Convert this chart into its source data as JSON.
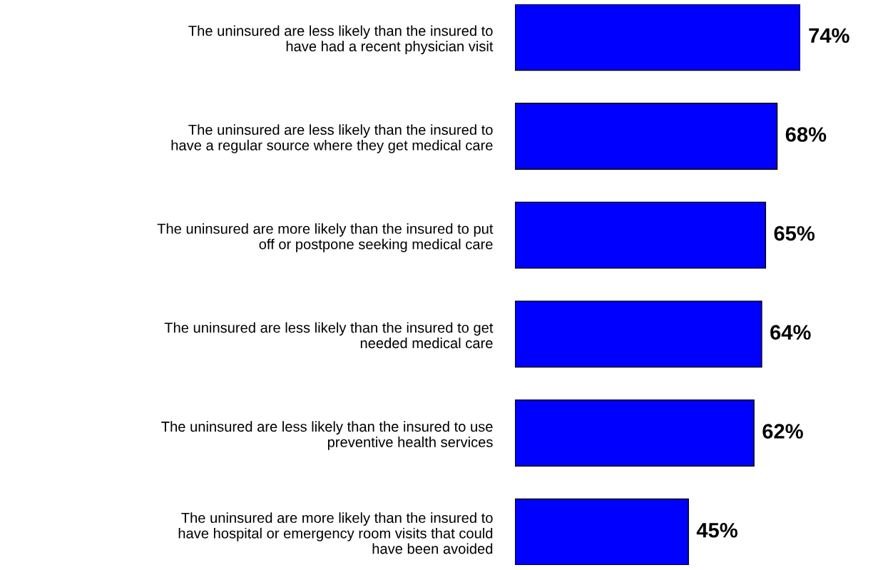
{
  "chart_data": {
    "type": "bar",
    "orientation": "horizontal",
    "categories": [
      "The uninsured are less likely than the insured to\nhave had a recent physician visit",
      "The uninsured are less likely than the insured to\nhave a regular source where they get medical care",
      "The uninsured are more likely than the insured to put\noff or postpone seeking medical care",
      "The uninsured are less likely than the insured to get\nneeded medical care",
      "The uninsured are less likely than the insured to use\npreventive health services",
      "The uninsured are more likely than the insured to\nhave hospital or emergency room visits that could\nhave been avoided"
    ],
    "values": [
      74,
      68,
      65,
      64,
      62,
      45
    ],
    "value_labels": [
      "74%",
      "68%",
      "65%",
      "64%",
      "62%",
      "45%"
    ],
    "color": "#0000ff",
    "tick_labels": "y",
    "grid": false,
    "legend": false
  }
}
